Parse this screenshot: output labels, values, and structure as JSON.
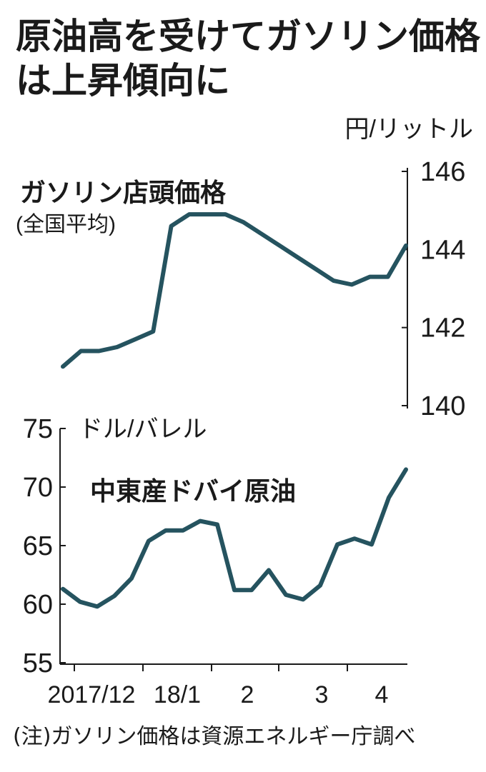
{
  "title": "原油高を受けてガソリン価格は上昇傾向に",
  "note": "(注)ガソリン価格は資源エネルギー庁調べ",
  "colors": {
    "line": "#25535f",
    "axis": "#1a1a1a"
  },
  "chart_data": [
    {
      "type": "line",
      "title": "ガソリン店頭価格",
      "subtitle": "(全国平均)",
      "ylabel": "円/リットル",
      "ylim": [
        140,
        146
      ],
      "yticks": [
        "146",
        "144",
        "142",
        "140"
      ],
      "y_axis_side": "right",
      "series": [
        {
          "values": [
            141.0,
            141.4,
            141.4,
            141.5,
            141.7,
            141.9,
            144.6,
            144.9,
            144.9,
            144.9,
            144.7,
            144.4,
            144.1,
            143.8,
            143.5,
            143.2,
            143.1,
            143.3,
            143.3,
            144.1
          ]
        }
      ]
    },
    {
      "type": "line",
      "title": "中東産ドバイ原油",
      "ylabel": "ドル/バレル",
      "ylim": [
        55,
        75
      ],
      "yticks": [
        "75",
        "70",
        "65",
        "60",
        "55"
      ],
      "y_axis_side": "left",
      "x_tick_labels": [
        "2017/12",
        "18/1",
        "2",
        "3",
        "4"
      ],
      "series": [
        {
          "values": [
            61.3,
            60.2,
            59.8,
            60.7,
            62.2,
            65.4,
            66.3,
            66.3,
            67.1,
            66.8,
            61.2,
            61.2,
            62.9,
            60.8,
            60.4,
            61.6,
            65.1,
            65.6,
            65.1,
            69.1,
            71.5
          ]
        }
      ]
    }
  ]
}
